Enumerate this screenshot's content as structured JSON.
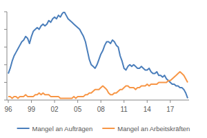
{
  "chart_data": {
    "type": "line",
    "categories": [
      "96",
      null,
      null,
      null,
      null,
      null,
      null,
      null,
      null,
      null,
      null,
      null,
      "99",
      null,
      null,
      null,
      null,
      null,
      null,
      null,
      null,
      null,
      null,
      null,
      "02",
      null,
      null,
      null,
      null,
      null,
      null,
      null,
      null,
      null,
      null,
      null,
      "05",
      null,
      null,
      null,
      null,
      null,
      null,
      null,
      null,
      null,
      null,
      null,
      "08",
      null,
      null,
      null,
      null,
      null,
      null,
      null,
      null,
      null,
      null,
      null,
      "11",
      null,
      null,
      null,
      null,
      null,
      null,
      null,
      null,
      null,
      null,
      null,
      "14",
      null,
      null,
      null,
      null,
      null,
      null,
      null,
      null,
      null,
      null,
      null,
      "17",
      null,
      null,
      null,
      null,
      null,
      null,
      null,
      null,
      null
    ],
    "series": [
      {
        "name": "Mangel an Aufträgen",
        "color": "#4a7ebb",
        "values": [
          15,
          18,
          22,
          25,
          27,
          29,
          31,
          33,
          34,
          36,
          35,
          32,
          36,
          39,
          40,
          41,
          40,
          42,
          43,
          42,
          43,
          45,
          44,
          46,
          47,
          46,
          48,
          47,
          49,
          50,
          48,
          46,
          45,
          44,
          43,
          42,
          41,
          40,
          38,
          36,
          33,
          28,
          23,
          20,
          19,
          18,
          20,
          23,
          26,
          28,
          31,
          33,
          33,
          32,
          34,
          33,
          31,
          30,
          25,
          22,
          18,
          17,
          19,
          20,
          19,
          20,
          19,
          18,
          18,
          19,
          18,
          17,
          17,
          18,
          16,
          15,
          15,
          16,
          14,
          14,
          13,
          14,
          12,
          11,
          10,
          9,
          9,
          8,
          8,
          7,
          7,
          6,
          4,
          1
        ]
      },
      {
        "name": "Mangel an Arbeitskräften",
        "color": "#f79646",
        "values": [
          2,
          2,
          1,
          2,
          2,
          1,
          2,
          2,
          2,
          3,
          2,
          2,
          2,
          2,
          3,
          3,
          4,
          3,
          4,
          3,
          3,
          3,
          2,
          2,
          2,
          2,
          2,
          1,
          1,
          1,
          1,
          1,
          1,
          1,
          2,
          1,
          2,
          2,
          2,
          2,
          3,
          3,
          4,
          4,
          5,
          6,
          6,
          6,
          7,
          8,
          7,
          6,
          4,
          3,
          3,
          4,
          4,
          5,
          6,
          6,
          7,
          8,
          8,
          7,
          7,
          7,
          6,
          7,
          7,
          8,
          8,
          8,
          9,
          8,
          9,
          9,
          9,
          9,
          10,
          10,
          10,
          10,
          10,
          11,
          11,
          12,
          13,
          14,
          15,
          16,
          15,
          14,
          12,
          10
        ]
      }
    ],
    "ylim": [
      0,
      50
    ],
    "yticks": [
      0,
      10,
      20,
      30,
      40,
      50
    ],
    "grid": false,
    "legend": "bottom",
    "tick_labels": "x"
  }
}
